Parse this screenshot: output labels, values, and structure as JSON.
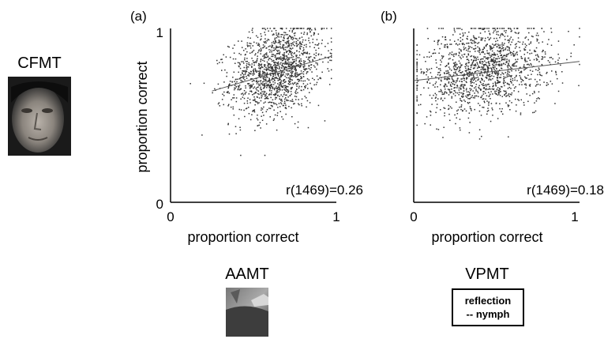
{
  "left": {
    "test_label": "CFMT",
    "image_name": "face-photo"
  },
  "bottom": {
    "aamt_label": "AAMT",
    "aamt_image_name": "landscape-photo",
    "vpmt_label": "VPMT",
    "vpmt_box_line1": "reflection",
    "vpmt_box_line2": "-- nymph"
  },
  "chart_data": [
    {
      "type": "scatter",
      "panel_label": "(a)",
      "xlabel": "proportion correct",
      "ylabel": "proportion correct",
      "xlim": [
        0,
        1
      ],
      "ylim": [
        0,
        1
      ],
      "xticks": [
        "0",
        "1"
      ],
      "yticks": [
        "0",
        "1"
      ],
      "annotation": "r(1469)=0.26",
      "n_points": 1471,
      "x_mean": 0.64,
      "x_sd": 0.14,
      "x_range": [
        0.12,
        0.97
      ],
      "y_mean": 0.76,
      "y_sd": 0.13,
      "y_range": [
        0.27,
        1.0
      ],
      "r": 0.26,
      "fit_line": {
        "x": [
          0.25,
          0.97
        ],
        "y": [
          0.64,
          0.84
        ]
      },
      "grid": false,
      "legend": "none"
    },
    {
      "type": "scatter",
      "panel_label": "(b)",
      "xlabel": "proportion correct",
      "ylabel": "",
      "xlim": [
        0,
        1
      ],
      "ylim": [
        0,
        1
      ],
      "xticks": [
        "0",
        "1"
      ],
      "yticks": [
        "0",
        "1"
      ],
      "annotation": "r(1469)=0.18",
      "n_points": 1471,
      "x_mean": 0.42,
      "x_sd": 0.2,
      "x_range": [
        0.02,
        1.0
      ],
      "y_mean": 0.76,
      "y_sd": 0.13,
      "y_range": [
        0.27,
        1.0
      ],
      "r": 0.18,
      "fit_line": {
        "x": [
          0.0,
          1.0
        ],
        "y": [
          0.7,
          0.81
        ]
      },
      "grid": false,
      "legend": "none"
    }
  ]
}
